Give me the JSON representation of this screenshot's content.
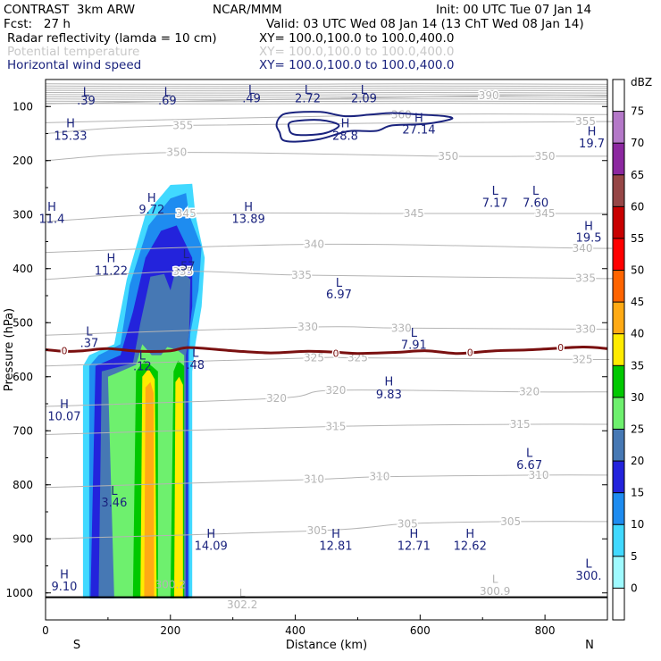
{
  "header": {
    "model": "CONTRAST  3km ARW",
    "org": "NCAR/MMM",
    "init": "Init: 00 UTC Tue 07 Jan 14",
    "fcst": "Fcst:   27 h",
    "valid": "Valid: 03 UTC Wed 08 Jan 14 (13 ChT Wed 08 Jan 14)",
    "field1": "Radar reflectivity (lamda = 10 cm)",
    "xy1": "XY= 100.0,100.0 to 100.0,400.0",
    "field2": "Potential temperature",
    "xy2": "XY= 100.0,100.0 to 100.0,400.0",
    "field3": "Horizontal wind speed",
    "xy3": "XY= 100.0,100.0 to 100.0,400.0"
  },
  "colors": {
    "theta": "#b4b4b4",
    "wind": "#1a237e",
    "freezing": "#7a1010",
    "frame": "#000000"
  },
  "chart_data": {
    "type": "contour",
    "xlabel": "Distance (km)",
    "ylabel": "Pressure (hPa)",
    "xlim": [
      0,
      900
    ],
    "ylim": [
      1050,
      50
    ],
    "xticks": [
      0,
      200,
      400,
      600,
      800
    ],
    "yticks": [
      100,
      200,
      300,
      400,
      500,
      600,
      700,
      800,
      900,
      1000
    ],
    "left_end_label": "S",
    "right_end_label": "N",
    "colorbar": {
      "unit": "dBZ",
      "levels": [
        0,
        5,
        10,
        15,
        20,
        25,
        30,
        35,
        40,
        45,
        50,
        55,
        60,
        65,
        70,
        75
      ],
      "colors": [
        "#ffffff",
        "#9ffaff",
        "#41d9ff",
        "#1e8cf0",
        "#2323dc",
        "#4678b4",
        "#6ef06e",
        "#00c800",
        "#ffeb00",
        "#ffaa14",
        "#ff6400",
        "#ff0000",
        "#c80000",
        "#964646",
        "#8c28a0",
        "#b478c8",
        "#ffffff"
      ]
    },
    "theta_contours": {
      "levels": [
        300,
        305,
        310,
        315,
        320,
        325,
        330,
        335,
        340,
        345,
        350,
        355,
        360,
        390
      ],
      "labels": [
        {
          "text": "390",
          "x": 710,
          "p": 80
        },
        {
          "text": "360",
          "x": 570,
          "p": 115
        },
        {
          "text": "355",
          "x": 220,
          "p": 135
        },
        {
          "text": "355",
          "x": 865,
          "p": 128
        },
        {
          "text": "350",
          "x": 210,
          "p": 185
        },
        {
          "text": "350",
          "x": 645,
          "p": 192
        },
        {
          "text": "350",
          "x": 800,
          "p": 192
        },
        {
          "text": "345",
          "x": 225,
          "p": 298
        },
        {
          "text": "345",
          "x": 590,
          "p": 298
        },
        {
          "text": "345",
          "x": 800,
          "p": 298
        },
        {
          "text": "340",
          "x": 430,
          "p": 355
        },
        {
          "text": "340",
          "x": 860,
          "p": 362
        },
        {
          "text": "335",
          "x": 220,
          "p": 405
        },
        {
          "text": "335",
          "x": 410,
          "p": 412
        },
        {
          "text": "335",
          "x": 865,
          "p": 418
        },
        {
          "text": "330",
          "x": 420,
          "p": 508
        },
        {
          "text": "330",
          "x": 570,
          "p": 510
        },
        {
          "text": "330",
          "x": 865,
          "p": 512
        },
        {
          "text": "325",
          "x": 430,
          "p": 565
        },
        {
          "text": "325",
          "x": 500,
          "p": 565
        },
        {
          "text": "325",
          "x": 860,
          "p": 568
        },
        {
          "text": "320",
          "x": 370,
          "p": 640
        },
        {
          "text": "320",
          "x": 465,
          "p": 625
        },
        {
          "text": "320",
          "x": 775,
          "p": 628
        },
        {
          "text": "315",
          "x": 465,
          "p": 692
        },
        {
          "text": "315",
          "x": 760,
          "p": 688
        },
        {
          "text": "310",
          "x": 430,
          "p": 790
        },
        {
          "text": "310",
          "x": 535,
          "p": 785
        },
        {
          "text": "310",
          "x": 790,
          "p": 782
        },
        {
          "text": "305",
          "x": 435,
          "p": 885
        },
        {
          "text": "305",
          "x": 580,
          "p": 872
        },
        {
          "text": "305",
          "x": 745,
          "p": 868
        }
      ]
    },
    "freezing_level": {
      "label": "0",
      "points": [
        [
          0,
          550
        ],
        [
          30,
          553
        ],
        [
          60,
          552
        ],
        [
          100,
          548
        ],
        [
          150,
          553
        ],
        [
          200,
          552
        ],
        [
          230,
          546
        ],
        [
          300,
          552
        ],
        [
          360,
          556
        ],
        [
          420,
          553
        ],
        [
          470,
          555
        ],
        [
          500,
          557
        ],
        [
          560,
          555
        ],
        [
          610,
          552
        ],
        [
          660,
          557
        ],
        [
          720,
          552
        ],
        [
          780,
          550
        ],
        [
          860,
          545
        ],
        [
          900,
          548
        ]
      ],
      "label_positions": [
        [
          30,
          552
        ],
        [
          465,
          557
        ],
        [
          680,
          555
        ],
        [
          825,
          546
        ]
      ]
    },
    "reflectivity_shapes": [
      {
        "dbz": 5,
        "pts": [
          [
            60,
            580
          ],
          [
            70,
            560
          ],
          [
            110,
            540
          ],
          [
            130,
            420
          ],
          [
            160,
            300
          ],
          [
            200,
            245
          ],
          [
            235,
            243
          ],
          [
            240,
            300
          ],
          [
            255,
            380
          ],
          [
            250,
            470
          ],
          [
            240,
            540
          ],
          [
            235,
            590
          ],
          [
            235,
            1010
          ],
          [
            60,
            1010
          ]
        ]
      },
      {
        "dbz": 10,
        "pts": [
          [
            70,
            580
          ],
          [
            85,
            560
          ],
          [
            120,
            540
          ],
          [
            135,
            430
          ],
          [
            165,
            320
          ],
          [
            200,
            270
          ],
          [
            225,
            260
          ],
          [
            230,
            300
          ],
          [
            250,
            360
          ],
          [
            245,
            440
          ],
          [
            232,
            520
          ],
          [
            230,
            560
          ],
          [
            230,
            1010
          ],
          [
            70,
            1010
          ]
        ]
      },
      {
        "dbz": 15,
        "pts": [
          [
            80,
            580
          ],
          [
            120,
            560
          ],
          [
            140,
            480
          ],
          [
            160,
            380
          ],
          [
            185,
            330
          ],
          [
            210,
            320
          ],
          [
            235,
            380
          ],
          [
            235,
            470
          ],
          [
            228,
            540
          ],
          [
            228,
            1010
          ],
          [
            72,
            1010
          ]
        ]
      },
      {
        "dbz": 20,
        "pts": [
          [
            90,
            590
          ],
          [
            140,
            575
          ],
          [
            152,
            500
          ],
          [
            168,
            415
          ],
          [
            190,
            410
          ],
          [
            200,
            440
          ],
          [
            210,
            395
          ],
          [
            232,
            420
          ],
          [
            230,
            520
          ],
          [
            225,
            560
          ],
          [
            225,
            1010
          ],
          [
            85,
            1010
          ]
        ]
      },
      {
        "dbz": 25,
        "pts": [
          [
            100,
            600
          ],
          [
            145,
            578
          ],
          [
            155,
            540
          ],
          [
            170,
            560
          ],
          [
            185,
            560
          ],
          [
            195,
            545
          ],
          [
            210,
            550
          ],
          [
            222,
            560
          ],
          [
            222,
            1010
          ],
          [
            110,
            1010
          ]
        ]
      },
      {
        "dbz": 30,
        "pts": [
          [
            145,
            590
          ],
          [
            158,
            570
          ],
          [
            170,
            580
          ],
          [
            180,
            590
          ],
          [
            180,
            1010
          ],
          [
            140,
            1010
          ]
        ]
      },
      {
        "dbz": 30,
        "pts": [
          [
            205,
            590
          ],
          [
            212,
            570
          ],
          [
            222,
            580
          ],
          [
            222,
            1010
          ],
          [
            200,
            1010
          ]
        ]
      },
      {
        "dbz": 35,
        "pts": [
          [
            155,
            600
          ],
          [
            165,
            585
          ],
          [
            175,
            605
          ],
          [
            178,
            1010
          ],
          [
            152,
            1010
          ]
        ]
      },
      {
        "dbz": 40,
        "pts": [
          [
            160,
            620
          ],
          [
            168,
            610
          ],
          [
            173,
            630
          ],
          [
            174,
            1010
          ],
          [
            158,
            1010
          ]
        ]
      },
      {
        "dbz": 35,
        "pts": [
          [
            208,
            610
          ],
          [
            214,
            600
          ],
          [
            220,
            615
          ],
          [
            220,
            1010
          ],
          [
            206,
            1010
          ]
        ]
      }
    ],
    "wind_contours": [
      {
        "pts": [
          [
            375,
            120
          ],
          [
            390,
            112
          ],
          [
            440,
            110
          ],
          [
            480,
            118
          ],
          [
            520,
            115
          ],
          [
            555,
            112
          ],
          [
            600,
            115
          ],
          [
            640,
            118
          ],
          [
            650,
            123
          ],
          [
            610,
            132
          ],
          [
            555,
            135
          ],
          [
            530,
            145
          ],
          [
            490,
            145
          ],
          [
            470,
            150
          ],
          [
            440,
            160
          ],
          [
            400,
            165
          ],
          [
            380,
            162
          ],
          [
            375,
            148
          ],
          [
            370,
            135
          ]
        ]
      },
      {
        "pts": [
          [
            395,
            128
          ],
          [
            440,
            125
          ],
          [
            470,
            135
          ],
          [
            445,
            150
          ],
          [
            400,
            152
          ],
          [
            390,
            140
          ]
        ]
      }
    ],
    "annotations": [
      {
        "text": "L",
        "x": 65,
        "p": 72
      },
      {
        "text": ".39",
        "x": 65,
        "p": 88
      },
      {
        "text": "L",
        "x": 195,
        "p": 72
      },
      {
        "text": ".69",
        "x": 195,
        "p": 88
      },
      {
        "text": "L",
        "x": 330,
        "p": 68
      },
      {
        "text": ".49",
        "x": 330,
        "p": 84
      },
      {
        "text": "L",
        "x": 420,
        "p": 68
      },
      {
        "text": "2.72",
        "x": 420,
        "p": 84
      },
      {
        "text": "L",
        "x": 510,
        "p": 68
      },
      {
        "text": "2.09",
        "x": 510,
        "p": 84
      },
      {
        "text": "H",
        "x": 40,
        "p": 130
      },
      {
        "text": "15.33",
        "x": 40,
        "p": 153
      },
      {
        "text": "H",
        "x": 480,
        "p": 130
      },
      {
        "text": "28.8",
        "x": 480,
        "p": 153
      },
      {
        "text": "H",
        "x": 598,
        "p": 120
      },
      {
        "text": "27.14",
        "x": 598,
        "p": 142
      },
      {
        "text": "H",
        "x": 875,
        "p": 145
      },
      {
        "text": "19.7",
        "x": 875,
        "p": 167
      },
      {
        "text": "L",
        "x": 720,
        "p": 255
      },
      {
        "text": "7.17",
        "x": 720,
        "p": 277
      },
      {
        "text": "L",
        "x": 785,
        "p": 255
      },
      {
        "text": "7.60",
        "x": 785,
        "p": 277
      },
      {
        "text": "H",
        "x": 10,
        "p": 285
      },
      {
        "text": "11.4",
        "x": 10,
        "p": 307
      },
      {
        "text": "H",
        "x": 170,
        "p": 268
      },
      {
        "text": "9.72",
        "x": 170,
        "p": 290
      },
      {
        "text": "H",
        "x": 325,
        "p": 285
      },
      {
        "text": "13.89",
        "x": 325,
        "p": 307
      },
      {
        "text": "H",
        "x": 870,
        "p": 320
      },
      {
        "text": "19.5",
        "x": 870,
        "p": 342
      },
      {
        "text": "H",
        "x": 105,
        "p": 380
      },
      {
        "text": "11.22",
        "x": 105,
        "p": 403
      },
      {
        "text": "L",
        "x": 225,
        "p": 372
      },
      {
        "text": ".57",
        "x": 225,
        "p": 395
      },
      {
        "text": "L",
        "x": 470,
        "p": 425
      },
      {
        "text": "6.97",
        "x": 470,
        "p": 447
      },
      {
        "text": "L",
        "x": 70,
        "p": 515
      },
      {
        "text": ".37",
        "x": 70,
        "p": 537
      },
      {
        "text": "L",
        "x": 590,
        "p": 518
      },
      {
        "text": "7.91",
        "x": 590,
        "p": 540
      },
      {
        "text": "L",
        "x": 155,
        "p": 560
      },
      {
        "text": ".12",
        "x": 155,
        "p": 580
      },
      {
        "text": "L",
        "x": 240,
        "p": 555
      },
      {
        "text": ".48",
        "x": 240,
        "p": 577
      },
      {
        "text": "H",
        "x": 550,
        "p": 608
      },
      {
        "text": "9.83",
        "x": 550,
        "p": 632
      },
      {
        "text": "H",
        "x": 30,
        "p": 650
      },
      {
        "text": "10.07",
        "x": 30,
        "p": 672
      },
      {
        "text": "L",
        "x": 775,
        "p": 740
      },
      {
        "text": "6.67",
        "x": 775,
        "p": 762
      },
      {
        "text": "L",
        "x": 110,
        "p": 810
      },
      {
        "text": "3.46",
        "x": 110,
        "p": 832
      },
      {
        "text": "H",
        "x": 265,
        "p": 890
      },
      {
        "text": "14.09",
        "x": 265,
        "p": 912
      },
      {
        "text": "H",
        "x": 465,
        "p": 890
      },
      {
        "text": "12.81",
        "x": 465,
        "p": 912
      },
      {
        "text": "H",
        "x": 590,
        "p": 890
      },
      {
        "text": "12.71",
        "x": 590,
        "p": 912
      },
      {
        "text": "H",
        "x": 680,
        "p": 890
      },
      {
        "text": "12.62",
        "x": 680,
        "p": 912
      },
      {
        "text": "H",
        "x": 30,
        "p": 965
      },
      {
        "text": "9.10",
        "x": 30,
        "p": 987
      },
      {
        "text": "L",
        "x": 870,
        "p": 945
      },
      {
        "text": "300.",
        "x": 870,
        "p": 967
      }
    ],
    "theta_minima": [
      {
        "text": "300.2",
        "x": 200,
        "p": 985
      },
      {
        "text": "L",
        "x": 315,
        "p": 1000
      },
      {
        "text": "302.2",
        "x": 315,
        "p": 1022
      },
      {
        "text": "L",
        "x": 720,
        "p": 975
      },
      {
        "text": "300.9",
        "x": 720,
        "p": 997
      }
    ]
  }
}
